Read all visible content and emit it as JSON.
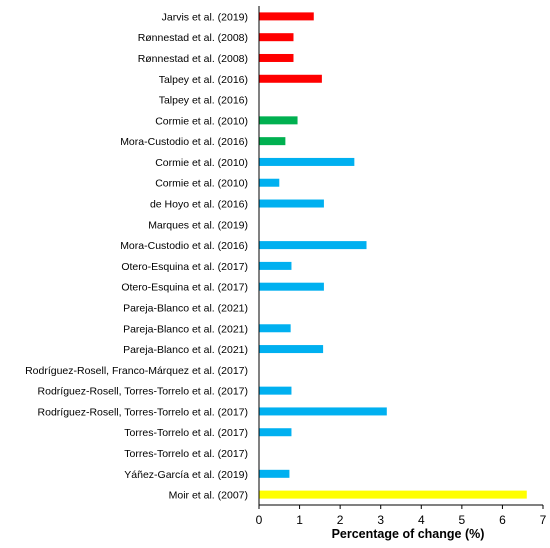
{
  "chart_data": {
    "type": "bar",
    "orientation": "horizontal",
    "xlabel": "Percentage of change (%)",
    "ylabel": "",
    "xlim": [
      0,
      7
    ],
    "xticks": [
      "0",
      "1",
      "2",
      "3",
      "4",
      "5",
      "6",
      "7"
    ],
    "grid": false,
    "legend": "none",
    "colors": {
      "red": "#FF0000",
      "green": "#00B050",
      "blue": "#00B0F0",
      "yellow": "#FFFF00"
    },
    "categories": [
      "Jarvis et al. (2019)",
      "Rønnestad et al. (2008)",
      "Rønnestad et al. (2008)",
      "Talpey et al. (2016)",
      "Talpey et al. (2016)",
      "Cormie et al. (2010)",
      "Mora-Custodio et al. (2016)",
      "Cormie et al. (2010)",
      "Cormie et al. (2010)",
      "de Hoyo et al. (2016)",
      "Marques et al. (2019)",
      "Mora-Custodio et al. (2016)",
      "Otero-Esquina et al. (2017)",
      "Otero-Esquina et al. (2017)",
      "Pareja-Blanco et al. (2021)",
      "Pareja-Blanco et al. (2021)",
      "Pareja-Blanco et al. (2021)",
      "Rodríguez-Rosell, Franco-Márquez et al. (2017)",
      "Rodríguez-Rosell, Torres-Torrelo et al. (2017)",
      "Rodríguez-Rosell, Torres-Torrelo et al. (2017)",
      "Torres-Torrelo et al. (2017)",
      "Torres-Torrelo et al. (2017)",
      "Yáñez-García et al. (2019)",
      "Moir et al. (2007)"
    ],
    "values": [
      1.35,
      0.85,
      0.85,
      1.55,
      0,
      0.95,
      0.65,
      2.35,
      0.5,
      1.6,
      0,
      2.65,
      0.8,
      1.6,
      0,
      0.78,
      1.58,
      0,
      0.8,
      3.15,
      0.8,
      0,
      0.75,
      6.6
    ],
    "bar_colors": [
      "red",
      "red",
      "red",
      "red",
      "red",
      "green",
      "green",
      "blue",
      "blue",
      "blue",
      "blue",
      "blue",
      "blue",
      "blue",
      "blue",
      "blue",
      "blue",
      "blue",
      "blue",
      "blue",
      "blue",
      "blue",
      "blue",
      "yellow"
    ]
  }
}
